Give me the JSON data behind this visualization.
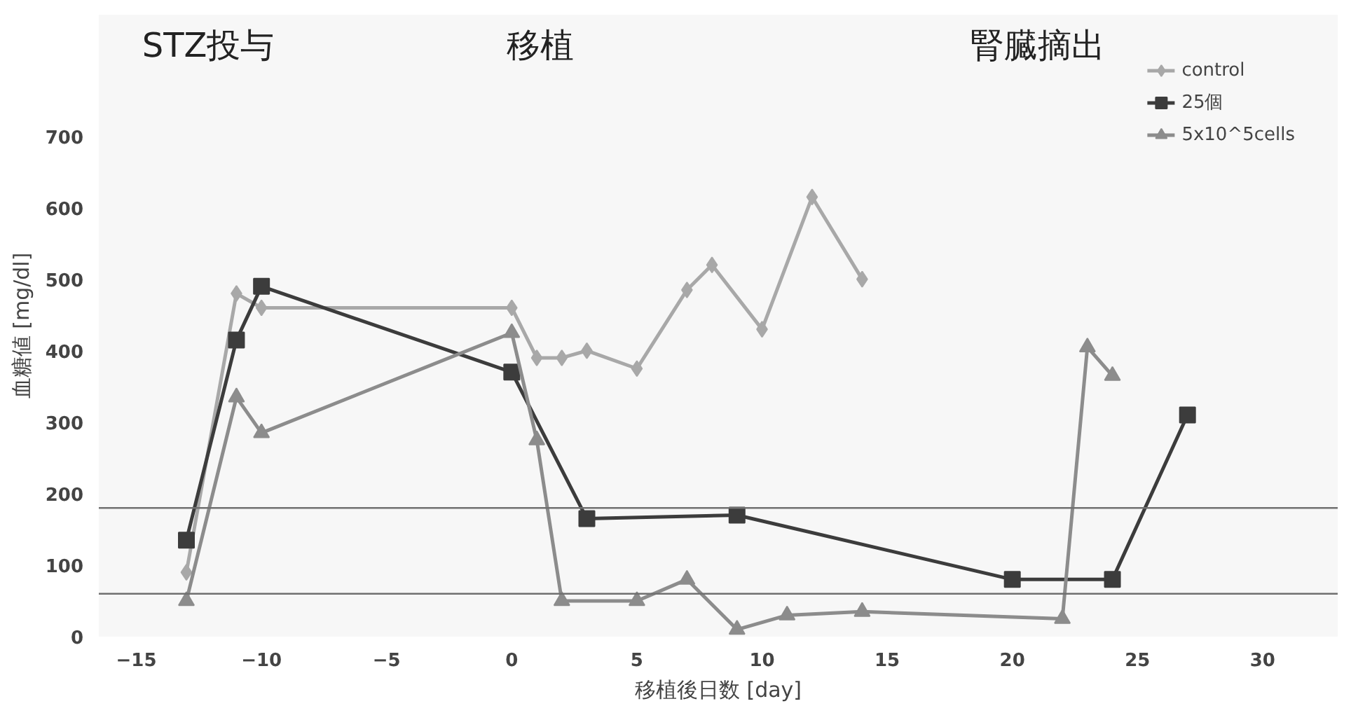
{
  "chart_data": {
    "type": "line",
    "xlabel": "移植後日数 [day]",
    "ylabel": "血糖値 [mg/dl]",
    "xlim": [
      -16.5,
      33
    ],
    "ylim": [
      0,
      870
    ],
    "xticks": [
      -15,
      -10,
      -5,
      0,
      5,
      10,
      15,
      20,
      25,
      30
    ],
    "yticks": [
      0,
      100,
      200,
      300,
      400,
      500,
      600,
      700
    ],
    "grid": false,
    "legend": "top right",
    "line_style": "solid",
    "series": [
      {
        "name": "control",
        "color": "#a8a8a8",
        "marker": "diamond",
        "x": [
          -13,
          -11,
          -10,
          0,
          1,
          2,
          3,
          5,
          7,
          8,
          10,
          12,
          14
        ],
        "values": [
          90,
          480,
          460,
          460,
          390,
          390,
          400,
          375,
          485,
          520,
          430,
          615,
          500
        ]
      },
      {
        "name": "25個",
        "color": "#3c3c3c",
        "marker": "square",
        "x": [
          -13,
          -11,
          -10,
          0,
          3,
          9,
          20,
          24,
          27
        ],
        "values": [
          135,
          415,
          490,
          370,
          165,
          170,
          80,
          80,
          310
        ]
      },
      {
        "name": "5x10^5cells",
        "color": "#8c8c8c",
        "marker": "triangle",
        "x": [
          -13,
          -11,
          -10,
          0,
          1,
          2,
          5,
          7,
          9,
          11,
          14,
          22,
          23,
          24
        ],
        "values": [
          50,
          335,
          285,
          425,
          275,
          50,
          50,
          80,
          10,
          30,
          35,
          25,
          405,
          365
        ]
      }
    ],
    "ref_lines": [
      {
        "axis": "y",
        "value": 180,
        "color": "#707070"
      },
      {
        "axis": "y",
        "value": 60,
        "color": "#707070"
      }
    ],
    "annotations": [
      "STZ投与",
      "移植",
      "腎臓摘出"
    ]
  }
}
